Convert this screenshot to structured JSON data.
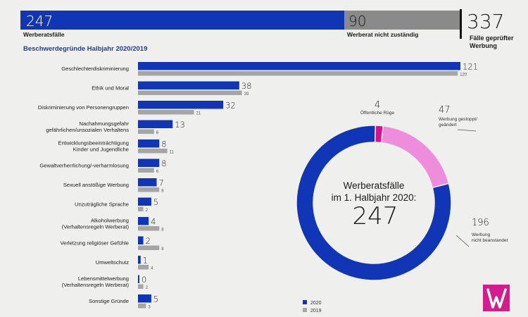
{
  "colors": {
    "c2020": "#1036b5",
    "c2019": "#a5a5a5",
    "grey_bar": "#8a8a8a",
    "pink": "#ee8ddb",
    "magenta": "#d3128b",
    "title_blue": "#1d3d9e",
    "logo_bg": "#d61c8d"
  },
  "summary": {
    "werberat_value": "247",
    "werberat_label": "Werberatsfälle",
    "not_responsible_value": "90",
    "not_responsible_label": "Werberat nicht zuständig",
    "total_value": "337",
    "total_label_line1": "Fälle geprüfter",
    "total_label_line2": "Werbung"
  },
  "donut_center": {
    "line1": "Werberatsfälle",
    "line2": "im 1. Halbjahr 2020:",
    "value": "247"
  },
  "chart_data": [
    {
      "type": "bar",
      "title": "Beschwerdegründe Halbjahr 2020/2019",
      "orientation": "horizontal",
      "categories": [
        [
          "Geschlechterdiskriminierung"
        ],
        [
          "Ethik und Moral"
        ],
        [
          "Diskriminierung von Personengruppen"
        ],
        [
          "Nachahmungsgefahr",
          "gefährlichen/unsozialen Verhaltens"
        ],
        [
          "Entwicklungsbeeinträchtigung",
          "Kinder und Jugendliche"
        ],
        [
          "Gewaltverherrlichung/-verharmlosung"
        ],
        [
          "Sexuell anstößige Werbung"
        ],
        [
          "Unzuträgliche Sprache"
        ],
        [
          "Alkoholwerbung",
          "(Verhaltensregeln Werberat)"
        ],
        [
          "Verletzung religiöser Gefühle"
        ],
        [
          "Umweltschutz"
        ],
        [
          "Lebensmittelwerbung",
          "(Verhaltensregeln Werberat)"
        ],
        [
          "Sonstige Gründe"
        ]
      ],
      "series": [
        {
          "name": "2020",
          "color": "#1036b5",
          "values": [
            121,
            38,
            32,
            13,
            8,
            8,
            7,
            5,
            4,
            2,
            1,
            0,
            5
          ]
        },
        {
          "name": "2019",
          "color": "#a5a5a5",
          "values": [
            120,
            39,
            21,
            6,
            11,
            6,
            8,
            2,
            8,
            8,
            4,
            2,
            3
          ]
        }
      ],
      "legend": "bottom-center"
    },
    {
      "type": "pie",
      "variant": "donut",
      "slices": [
        {
          "label": "Öffentliche Rüge",
          "value": 4,
          "color": "#d3128b"
        },
        {
          "label": "Werbung gestoppt/ geändert",
          "value": 47,
          "color": "#ee8ddb"
        },
        {
          "label": "Werbung nicht beanstandet",
          "value": 196,
          "color": "#1036b5"
        }
      ]
    }
  ]
}
